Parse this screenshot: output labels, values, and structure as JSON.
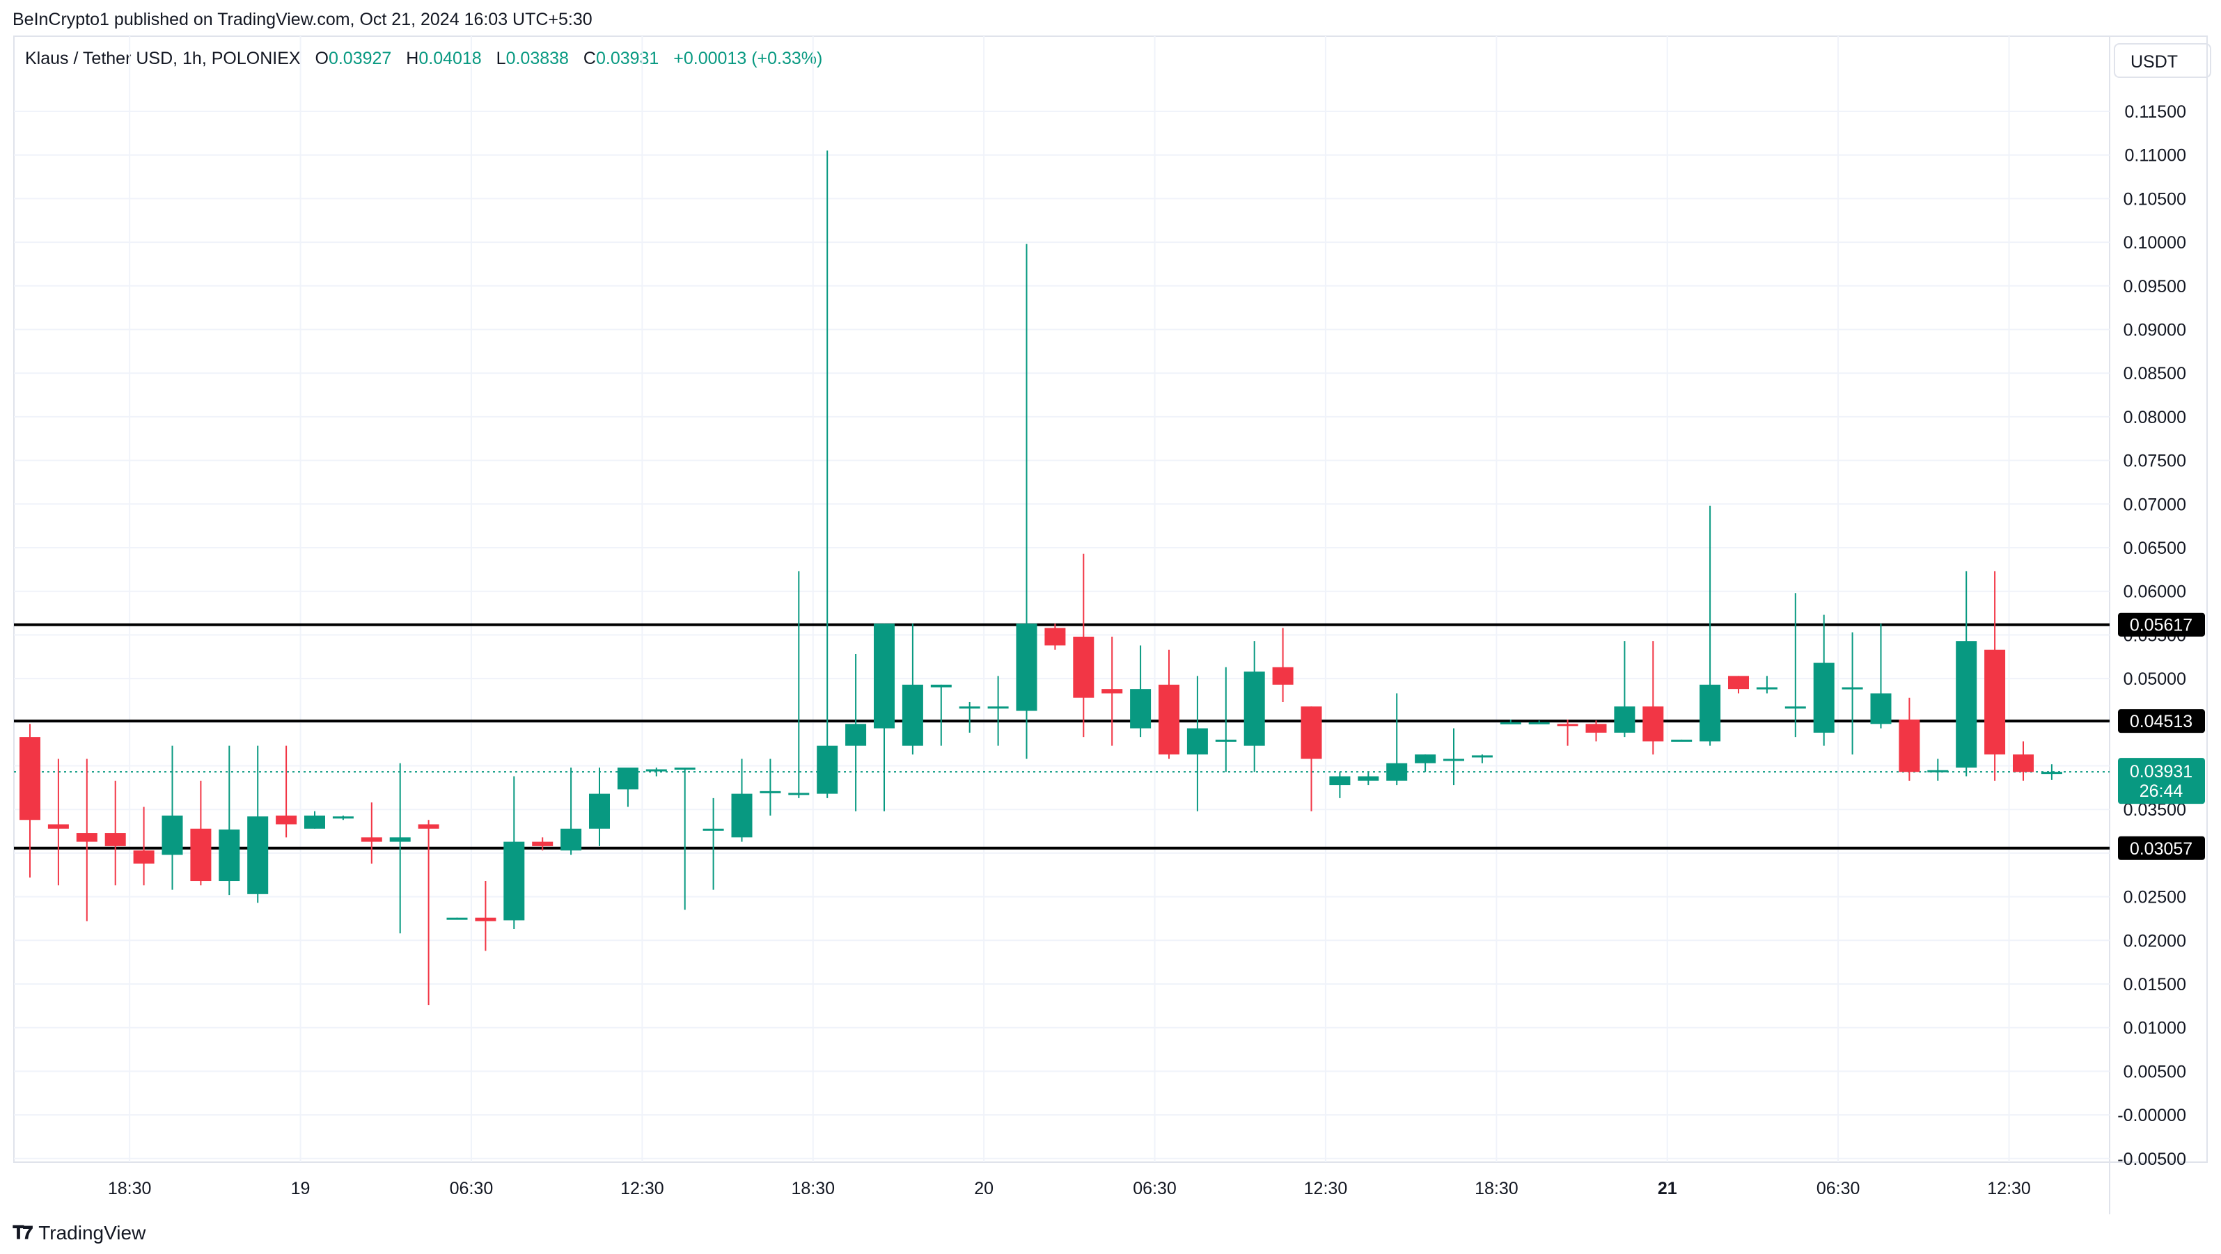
{
  "header": {
    "publisher": "BeInCrypto1 published on TradingView.com, Oct 21, 2024 16:03 UTC+5:30"
  },
  "legend": {
    "symbol": "Klaus / Tether USD, 1h, POLONIEX",
    "open_key": "O",
    "open": "0.03927",
    "high_key": "H",
    "high": "0.04018",
    "low_key": "L",
    "low": "0.03838",
    "close_key": "C",
    "close": "0.03931",
    "change": "+0.00013 (+0.33%)"
  },
  "currency_button": "USDT",
  "brand": {
    "name": "TradingView",
    "icon": "tradingview-logo-icon"
  },
  "colors": {
    "up": "#089981",
    "down": "#f23645",
    "grid": "#f0f3fa",
    "level": "#000000"
  },
  "chart_data": {
    "type": "candlestick",
    "y_axis": {
      "ticks": [
        "0.11500",
        "0.11000",
        "0.10500",
        "0.10000",
        "0.09500",
        "0.09000",
        "0.08500",
        "0.08000",
        "0.07500",
        "0.07000",
        "0.06500",
        "0.06000",
        "0.05500",
        "0.05000",
        "0.04500",
        "0.04000",
        "0.03500",
        "0.03000",
        "0.02500",
        "0.02000",
        "0.01500",
        "0.01000",
        "0.00500",
        "-0.00000",
        "-0.00500"
      ],
      "tick_values": [
        0.115,
        0.11,
        0.105,
        0.1,
        0.095,
        0.09,
        0.085,
        0.08,
        0.075,
        0.07,
        0.065,
        0.06,
        0.055,
        0.05,
        0.045,
        0.04,
        0.035,
        0.03,
        0.025,
        0.02,
        0.015,
        0.01,
        0.005,
        0,
        -0.005
      ],
      "range": [
        -0.0055,
        0.118
      ]
    },
    "x_axis": {
      "labels": [
        {
          "text": "18:30",
          "index": 3.5,
          "bold": false
        },
        {
          "text": "19",
          "index": 9.5,
          "bold": false
        },
        {
          "text": "06:30",
          "index": 15.5,
          "bold": false
        },
        {
          "text": "12:30",
          "index": 21.5,
          "bold": false
        },
        {
          "text": "18:30",
          "index": 27.5,
          "bold": false
        },
        {
          "text": "20",
          "index": 33.5,
          "bold": false
        },
        {
          "text": "06:30",
          "index": 39.5,
          "bold": false
        },
        {
          "text": "12:30",
          "index": 45.5,
          "bold": false
        },
        {
          "text": "18:30",
          "index": 51.5,
          "bold": false
        },
        {
          "text": "21",
          "index": 57.5,
          "bold": true
        },
        {
          "text": "06:30",
          "index": 63.5,
          "bold": false
        },
        {
          "text": "12:30",
          "index": 69.5,
          "bold": false
        }
      ]
    },
    "levels": [
      {
        "value": 0.05617,
        "label": "0.05617"
      },
      {
        "value": 0.04513,
        "label": "0.04513"
      },
      {
        "value": 0.03057,
        "label": "0.03057"
      }
    ],
    "last_price": {
      "value": 0.03931,
      "label": "0.03931",
      "countdown": "26:44"
    },
    "candles": [
      {
        "o": 0.0433,
        "h": 0.0448,
        "l": 0.0272,
        "c": 0.0338
      },
      {
        "o": 0.0333,
        "h": 0.0408,
        "l": 0.0263,
        "c": 0.0328
      },
      {
        "o": 0.0323,
        "h": 0.0408,
        "l": 0.0222,
        "c": 0.0313
      },
      {
        "o": 0.0323,
        "h": 0.0383,
        "l": 0.0263,
        "c": 0.0308
      },
      {
        "o": 0.0303,
        "h": 0.0353,
        "l": 0.0263,
        "c": 0.0288
      },
      {
        "o": 0.0298,
        "h": 0.0423,
        "l": 0.0258,
        "c": 0.0343
      },
      {
        "o": 0.0328,
        "h": 0.0383,
        "l": 0.0263,
        "c": 0.0268
      },
      {
        "o": 0.0268,
        "h": 0.0423,
        "l": 0.0252,
        "c": 0.0327
      },
      {
        "o": 0.0253,
        "h": 0.0423,
        "l": 0.0243,
        "c": 0.0342
      },
      {
        "o": 0.0343,
        "h": 0.0423,
        "l": 0.0318,
        "c": 0.0333
      },
      {
        "o": 0.0328,
        "h": 0.0348,
        "l": 0.0328,
        "c": 0.0343
      },
      {
        "o": 0.0341,
        "h": 0.0343,
        "l": 0.0338,
        "c": 0.0342
      },
      {
        "o": 0.0318,
        "h": 0.0358,
        "l": 0.0288,
        "c": 0.0313
      },
      {
        "o": 0.0313,
        "h": 0.0403,
        "l": 0.0208,
        "c": 0.0318
      },
      {
        "o": 0.0333,
        "h": 0.0338,
        "l": 0.0126,
        "c": 0.0328
      },
      {
        "o": 0.0226,
        "h": 0.0226,
        "l": 0.0225,
        "c": 0.0226
      },
      {
        "o": 0.0226,
        "h": 0.0268,
        "l": 0.0188,
        "c": 0.0222
      },
      {
        "o": 0.0223,
        "h": 0.0388,
        "l": 0.0213,
        "c": 0.0313
      },
      {
        "o": 0.0313,
        "h": 0.0318,
        "l": 0.0303,
        "c": 0.0308
      },
      {
        "o": 0.0303,
        "h": 0.0398,
        "l": 0.0298,
        "c": 0.0328
      },
      {
        "o": 0.0328,
        "h": 0.0398,
        "l": 0.0308,
        "c": 0.0368
      },
      {
        "o": 0.0373,
        "h": 0.0398,
        "l": 0.0353,
        "c": 0.0398
      },
      {
        "o": 0.0396,
        "h": 0.0398,
        "l": 0.0388,
        "c": 0.0396
      },
      {
        "o": 0.0397,
        "h": 0.0398,
        "l": 0.0235,
        "c": 0.0398
      },
      {
        "o": 0.0328,
        "h": 0.0363,
        "l": 0.0258,
        "c": 0.0328
      },
      {
        "o": 0.0318,
        "h": 0.0408,
        "l": 0.0313,
        "c": 0.0368
      },
      {
        "o": 0.037,
        "h": 0.0408,
        "l": 0.0343,
        "c": 0.0371
      },
      {
        "o": 0.0368,
        "h": 0.0623,
        "l": 0.0363,
        "c": 0.0369
      },
      {
        "o": 0.0368,
        "h": 0.1105,
        "l": 0.0363,
        "c": 0.0423
      },
      {
        "o": 0.0423,
        "h": 0.0528,
        "l": 0.0348,
        "c": 0.0448
      },
      {
        "o": 0.0443,
        "h": 0.0563,
        "l": 0.0348,
        "c": 0.0563
      },
      {
        "o": 0.0423,
        "h": 0.0563,
        "l": 0.0413,
        "c": 0.0493
      },
      {
        "o": 0.049,
        "h": 0.0493,
        "l": 0.0423,
        "c": 0.0493
      },
      {
        "o": 0.0468,
        "h": 0.0473,
        "l": 0.0438,
        "c": 0.0468
      },
      {
        "o": 0.0468,
        "h": 0.0503,
        "l": 0.0423,
        "c": 0.0468
      },
      {
        "o": 0.0463,
        "h": 0.0998,
        "l": 0.0408,
        "c": 0.0563
      },
      {
        "o": 0.0558,
        "h": 0.0563,
        "l": 0.0533,
        "c": 0.0538
      },
      {
        "o": 0.0548,
        "h": 0.0643,
        "l": 0.0433,
        "c": 0.0478
      },
      {
        "o": 0.0488,
        "h": 0.0548,
        "l": 0.0423,
        "c": 0.0483
      },
      {
        "o": 0.0443,
        "h": 0.0538,
        "l": 0.0433,
        "c": 0.0488
      },
      {
        "o": 0.0493,
        "h": 0.0533,
        "l": 0.0408,
        "c": 0.0413
      },
      {
        "o": 0.0413,
        "h": 0.0503,
        "l": 0.0348,
        "c": 0.0443
      },
      {
        "o": 0.0428,
        "h": 0.0513,
        "l": 0.0393,
        "c": 0.043
      },
      {
        "o": 0.0423,
        "h": 0.0543,
        "l": 0.0393,
        "c": 0.0508
      },
      {
        "o": 0.0513,
        "h": 0.0558,
        "l": 0.0473,
        "c": 0.0493
      },
      {
        "o": 0.0468,
        "h": 0.0468,
        "l": 0.0348,
        "c": 0.0408
      },
      {
        "o": 0.0378,
        "h": 0.0393,
        "l": 0.0363,
        "c": 0.0388
      },
      {
        "o": 0.0383,
        "h": 0.0393,
        "l": 0.0378,
        "c": 0.0388
      },
      {
        "o": 0.0383,
        "h": 0.0483,
        "l": 0.0378,
        "c": 0.0403
      },
      {
        "o": 0.0403,
        "h": 0.0413,
        "l": 0.0393,
        "c": 0.0413
      },
      {
        "o": 0.0408,
        "h": 0.0443,
        "l": 0.0378,
        "c": 0.0408
      },
      {
        "o": 0.0412,
        "h": 0.0413,
        "l": 0.0403,
        "c": 0.0412
      },
      {
        "o": 0.0448,
        "h": 0.0453,
        "l": 0.0448,
        "c": 0.045
      },
      {
        "o": 0.045,
        "h": 0.0452,
        "l": 0.0448,
        "c": 0.045
      },
      {
        "o": 0.0448,
        "h": 0.0453,
        "l": 0.0423,
        "c": 0.0446
      },
      {
        "o": 0.0448,
        "h": 0.0452,
        "l": 0.0428,
        "c": 0.0438
      },
      {
        "o": 0.0438,
        "h": 0.0543,
        "l": 0.0433,
        "c": 0.0468
      },
      {
        "o": 0.0468,
        "h": 0.0543,
        "l": 0.0413,
        "c": 0.0428
      },
      {
        "o": 0.0428,
        "h": 0.043,
        "l": 0.0428,
        "c": 0.043
      },
      {
        "o": 0.0428,
        "h": 0.0698,
        "l": 0.0423,
        "c": 0.0493
      },
      {
        "o": 0.0503,
        "h": 0.0503,
        "l": 0.0483,
        "c": 0.0488
      },
      {
        "o": 0.0488,
        "h": 0.0503,
        "l": 0.0483,
        "c": 0.049
      },
      {
        "o": 0.0468,
        "h": 0.0598,
        "l": 0.0433,
        "c": 0.0468
      },
      {
        "o": 0.0438,
        "h": 0.0573,
        "l": 0.0423,
        "c": 0.0518
      },
      {
        "o": 0.049,
        "h": 0.0553,
        "l": 0.0413,
        "c": 0.049
      },
      {
        "o": 0.0448,
        "h": 0.0563,
        "l": 0.0443,
        "c": 0.0483
      },
      {
        "o": 0.0453,
        "h": 0.0478,
        "l": 0.0383,
        "c": 0.0393
      },
      {
        "o": 0.0393,
        "h": 0.0408,
        "l": 0.0383,
        "c": 0.0395
      },
      {
        "o": 0.0398,
        "h": 0.0623,
        "l": 0.0388,
        "c": 0.0543
      },
      {
        "o": 0.0533,
        "h": 0.0623,
        "l": 0.0383,
        "c": 0.0413
      },
      {
        "o": 0.0413,
        "h": 0.0428,
        "l": 0.0383,
        "c": 0.0393
      },
      {
        "o": 0.03927,
        "h": 0.04018,
        "l": 0.03838,
        "c": 0.03931
      }
    ]
  }
}
